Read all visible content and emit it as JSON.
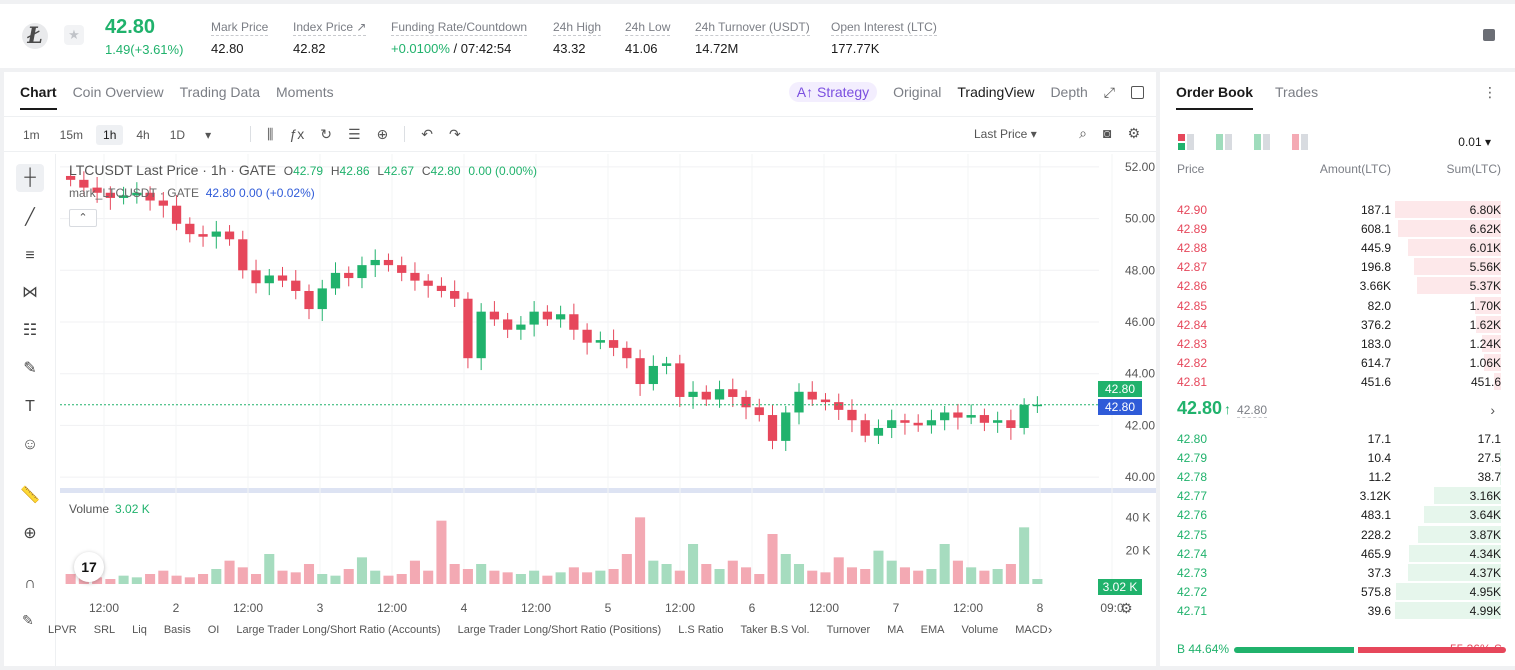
{
  "ticker": {
    "coin_icon": "litecoin-logo",
    "price": "42.80",
    "change": "1.49(+3.61%)",
    "stats": [
      {
        "label": "Mark Price",
        "value": "42.80"
      },
      {
        "label": "Index Price ↗",
        "value": "42.82"
      },
      {
        "label": "Funding Rate/Countdown",
        "value_green": "+0.0100%",
        "value": " / 07:42:54"
      },
      {
        "label": "24h High",
        "value": "43.32"
      },
      {
        "label": "24h Low",
        "value": "41.06"
      },
      {
        "label": "24h Turnover (USDT)",
        "value": "14.72M"
      },
      {
        "label": "Open Interest (LTC)",
        "value": "177.77K"
      }
    ]
  },
  "chart_tabs": [
    "Chart",
    "Coin Overview",
    "Trading Data",
    "Moments"
  ],
  "view_switch": {
    "strategy": "A↑ Strategy",
    "options": [
      "Original",
      "TradingView",
      "Depth"
    ]
  },
  "intervals": [
    "1m",
    "15m",
    "1h",
    "4h",
    "1D"
  ],
  "price_type": "Last Price ▾",
  "legend": {
    "title": "LTCUSDT Last Price · 1h · GATE",
    "o_label": "O",
    "o": "42.79",
    "h_label": "H",
    "h": "42.86",
    "l_label": "L",
    "l": "42.67",
    "c_label": "C",
    "c": "42.80",
    "chg": "0.00 (0.00%)",
    "mark_label": "mark_LTCUSDT · GATE",
    "mark_values": "42.80  0.00 (+0.02%)"
  },
  "volume_legend": {
    "label": "Volume",
    "value": "3.02 K"
  },
  "price_tags": {
    "last": "42.80",
    "mark": "42.80",
    "volume": "3.02 K"
  },
  "indicators": [
    "LPVR",
    "SRL",
    "Liq",
    "Basis",
    "OI",
    "Large Trader Long/Short Ratio (Accounts)",
    "Large Trader Long/Short Ratio (Positions)",
    "L.S Ratio",
    "Taker B.S Vol.",
    "Turnover",
    "MA",
    "EMA",
    "Volume",
    "MACD"
  ],
  "chart_data": {
    "type": "candlestick",
    "symbol": "LTCUSDT",
    "interval": "1h",
    "y_ticks": [
      "52.00",
      "50.00",
      "48.00",
      "46.00",
      "44.00",
      "42.00",
      "40.00"
    ],
    "ylim": [
      39.5,
      52.5
    ],
    "volume_ticks": [
      "40 K",
      "20 K"
    ],
    "x_ticks": [
      "12:00",
      "2",
      "12:00",
      "3",
      "12:00",
      "4",
      "12:00",
      "5",
      "12:00",
      "6",
      "12:00",
      "7",
      "12:00",
      "8",
      "09:0"
    ],
    "close_path": [
      51.5,
      51.2,
      51.0,
      50.8,
      50.9,
      51.0,
      50.7,
      50.5,
      49.8,
      49.4,
      49.3,
      49.5,
      49.2,
      48.0,
      47.5,
      47.8,
      47.6,
      47.2,
      46.5,
      47.3,
      47.9,
      47.7,
      48.2,
      48.4,
      48.2,
      47.9,
      47.6,
      47.4,
      47.2,
      46.9,
      44.6,
      46.4,
      46.1,
      45.7,
      45.9,
      46.4,
      46.1,
      46.3,
      45.7,
      45.2,
      45.3,
      45.0,
      44.6,
      43.6,
      44.3,
      44.4,
      43.1,
      43.3,
      43.0,
      43.4,
      43.1,
      42.7,
      42.4,
      41.4,
      42.5,
      43.3,
      43.0,
      42.9,
      42.6,
      42.2,
      41.6,
      41.9,
      42.2,
      42.1,
      42.0,
      42.2,
      42.5,
      42.3,
      42.4,
      42.1,
      42.2,
      41.9,
      42.8,
      42.8
    ],
    "volume_k": [
      6,
      5,
      4,
      3,
      5,
      4,
      6,
      8,
      5,
      4,
      6,
      9,
      14,
      10,
      6,
      18,
      8,
      7,
      12,
      6,
      5,
      9,
      16,
      8,
      5,
      6,
      14,
      8,
      38,
      12,
      9,
      12,
      8,
      7,
      6,
      8,
      5,
      7,
      10,
      7,
      8,
      9,
      18,
      40,
      14,
      12,
      8,
      24,
      12,
      9,
      14,
      10,
      6,
      30,
      18,
      12,
      8,
      7,
      16,
      10,
      9,
      20,
      14,
      10,
      8,
      9,
      24,
      14,
      10,
      8,
      9,
      12,
      34,
      3
    ],
    "last_price": 42.8
  },
  "orderbook": {
    "tabs": [
      "Order Book",
      "Trades"
    ],
    "precision": "0.01 ▾",
    "headers": [
      "Price",
      "Amount(LTC)",
      "Sum(LTC)"
    ],
    "asks": [
      {
        "p": "42.90",
        "a": "187.1",
        "s": "6.80K",
        "w": 1.0
      },
      {
        "p": "42.89",
        "a": "608.1",
        "s": "6.62K",
        "w": 0.97
      },
      {
        "p": "42.88",
        "a": "445.9",
        "s": "6.01K",
        "w": 0.88
      },
      {
        "p": "42.87",
        "a": "196.8",
        "s": "5.56K",
        "w": 0.82
      },
      {
        "p": "42.86",
        "a": "3.66K",
        "s": "5.37K",
        "w": 0.79
      },
      {
        "p": "42.85",
        "a": "82.0",
        "s": "1.70K",
        "w": 0.25
      },
      {
        "p": "42.84",
        "a": "376.2",
        "s": "1.62K",
        "w": 0.24
      },
      {
        "p": "42.83",
        "a": "183.0",
        "s": "1.24K",
        "w": 0.18
      },
      {
        "p": "42.82",
        "a": "614.7",
        "s": "1.06K",
        "w": 0.16
      },
      {
        "p": "42.81",
        "a": "451.6",
        "s": "451.6",
        "w": 0.07
      }
    ],
    "mid": {
      "price": "42.80",
      "arrow": "↑",
      "mark": "42.80"
    },
    "bids": [
      {
        "p": "42.80",
        "a": "17.1",
        "s": "17.1",
        "w": 0.0
      },
      {
        "p": "42.79",
        "a": "10.4",
        "s": "27.5",
        "w": 0.01
      },
      {
        "p": "42.78",
        "a": "11.2",
        "s": "38.7",
        "w": 0.01
      },
      {
        "p": "42.77",
        "a": "3.12K",
        "s": "3.16K",
        "w": 0.63
      },
      {
        "p": "42.76",
        "a": "483.1",
        "s": "3.64K",
        "w": 0.73
      },
      {
        "p": "42.75",
        "a": "228.2",
        "s": "3.87K",
        "w": 0.78
      },
      {
        "p": "42.74",
        "a": "465.9",
        "s": "4.34K",
        "w": 0.87
      },
      {
        "p": "42.73",
        "a": "37.3",
        "s": "4.37K",
        "w": 0.88
      },
      {
        "p": "42.72",
        "a": "575.8",
        "s": "4.95K",
        "w": 0.99
      },
      {
        "p": "42.71",
        "a": "39.6",
        "s": "4.99K",
        "w": 1.0
      }
    ],
    "ratio": {
      "buy_label": "B 44.64%",
      "sell_label": "55.36% S",
      "buy": 44.64,
      "sell": 55.36
    }
  },
  "colors": {
    "up": "#20b26c",
    "down": "#e6475b",
    "mark_blue": "#2f5bd8"
  }
}
